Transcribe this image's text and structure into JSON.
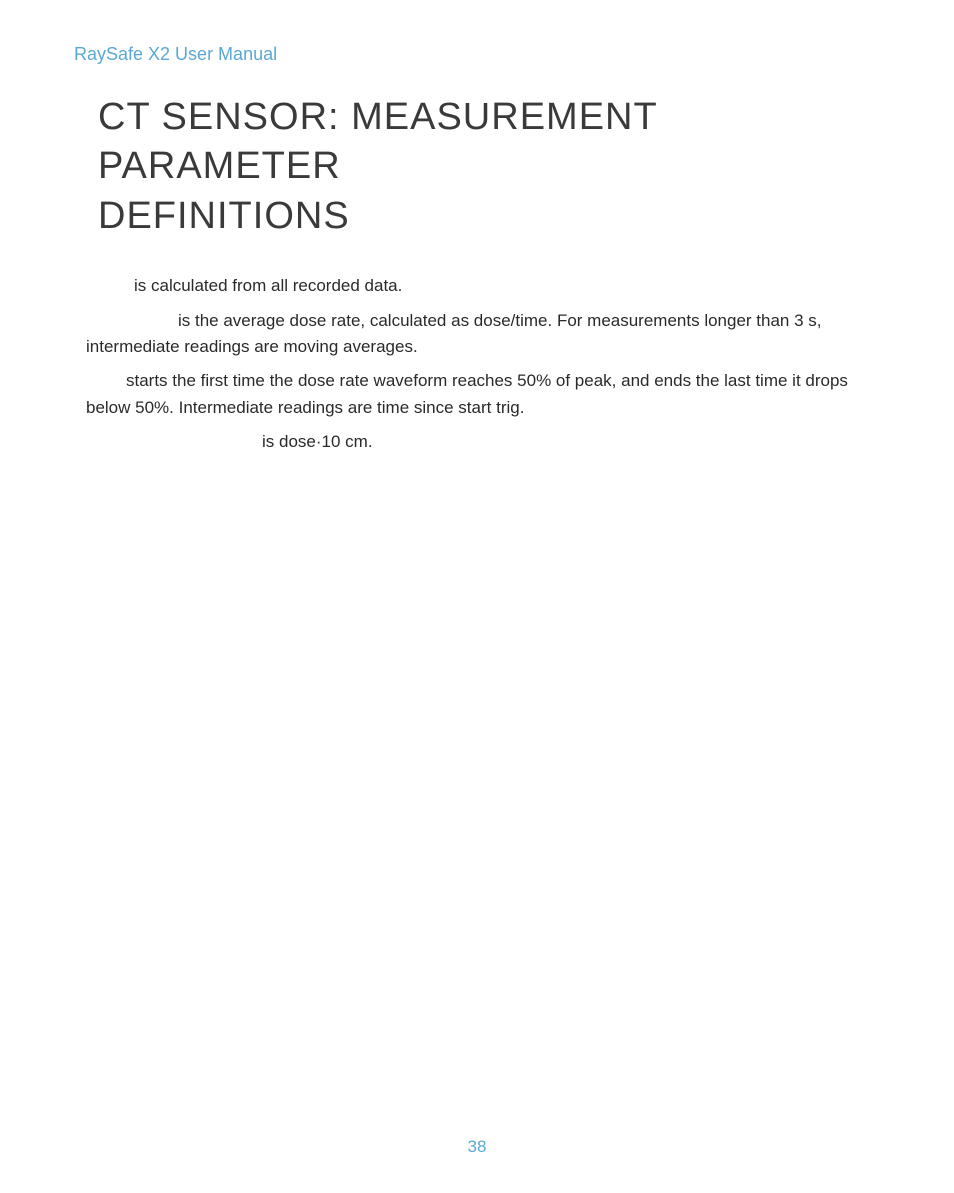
{
  "header": {
    "text": "RaySafe X2 User Manual",
    "color": "#5ba8d4"
  },
  "title": {
    "line1": "CT SENSOR: MEASUREMENT PARAMETER",
    "line2": " DEFINITIONS",
    "color": "#3a3a3a"
  },
  "paragraphs": {
    "p1": "is calculated from all recorded data.",
    "p2": "is the average dose rate, calculated as dose/time. For measurements longer than 3 s, intermediate readings are moving averages.",
    "p3": "starts the first time the dose rate waveform reaches 50% of peak, and ends the last time it drops below 50%. Intermediate readings are time since start trig.",
    "p4": "is dose·10 cm."
  },
  "pageNumber": "38",
  "pageNumberColor": "#5ba8d4"
}
